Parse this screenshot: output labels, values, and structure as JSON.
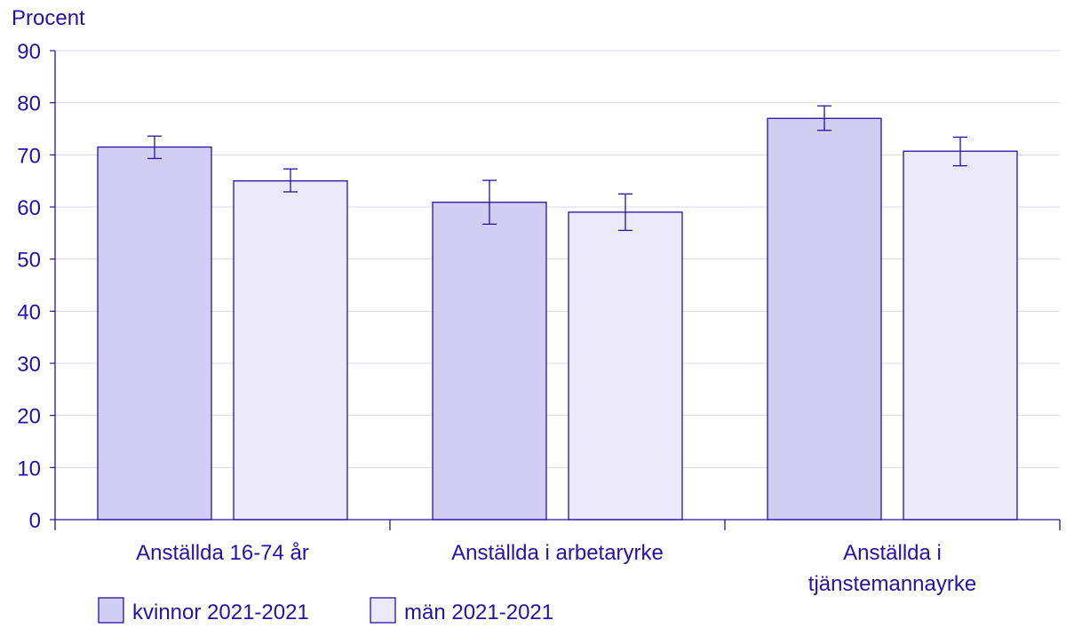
{
  "chart_data": {
    "type": "bar",
    "ylabel": "Procent",
    "ylim": [
      0,
      90
    ],
    "yticks": [
      0,
      10,
      20,
      30,
      40,
      50,
      60,
      70,
      80,
      90
    ],
    "grid": true,
    "categories": [
      [
        "Anställda 16-74 år"
      ],
      [
        "Anställda i arbetaryrke"
      ],
      [
        "Anställda i",
        "tjänstemannayrke"
      ]
    ],
    "series": [
      {
        "name": "kvinnor 2021-2021",
        "color": "#d2cdf3",
        "values": [
          71.5,
          60.9,
          77.0
        ],
        "error_low": [
          69.3,
          56.7,
          74.7
        ],
        "error_high": [
          73.6,
          65.1,
          79.4
        ]
      },
      {
        "name": "män 2021-2021",
        "color": "#ece9fb",
        "values": [
          65.0,
          59.0,
          70.7
        ],
        "error_low": [
          62.9,
          55.5,
          67.9
        ],
        "error_high": [
          67.3,
          62.5,
          73.4
        ]
      }
    ],
    "legend_position": "bottom-left",
    "colors": {
      "ink": "#2a0fa6",
      "grid": "#d9d9ec"
    }
  }
}
